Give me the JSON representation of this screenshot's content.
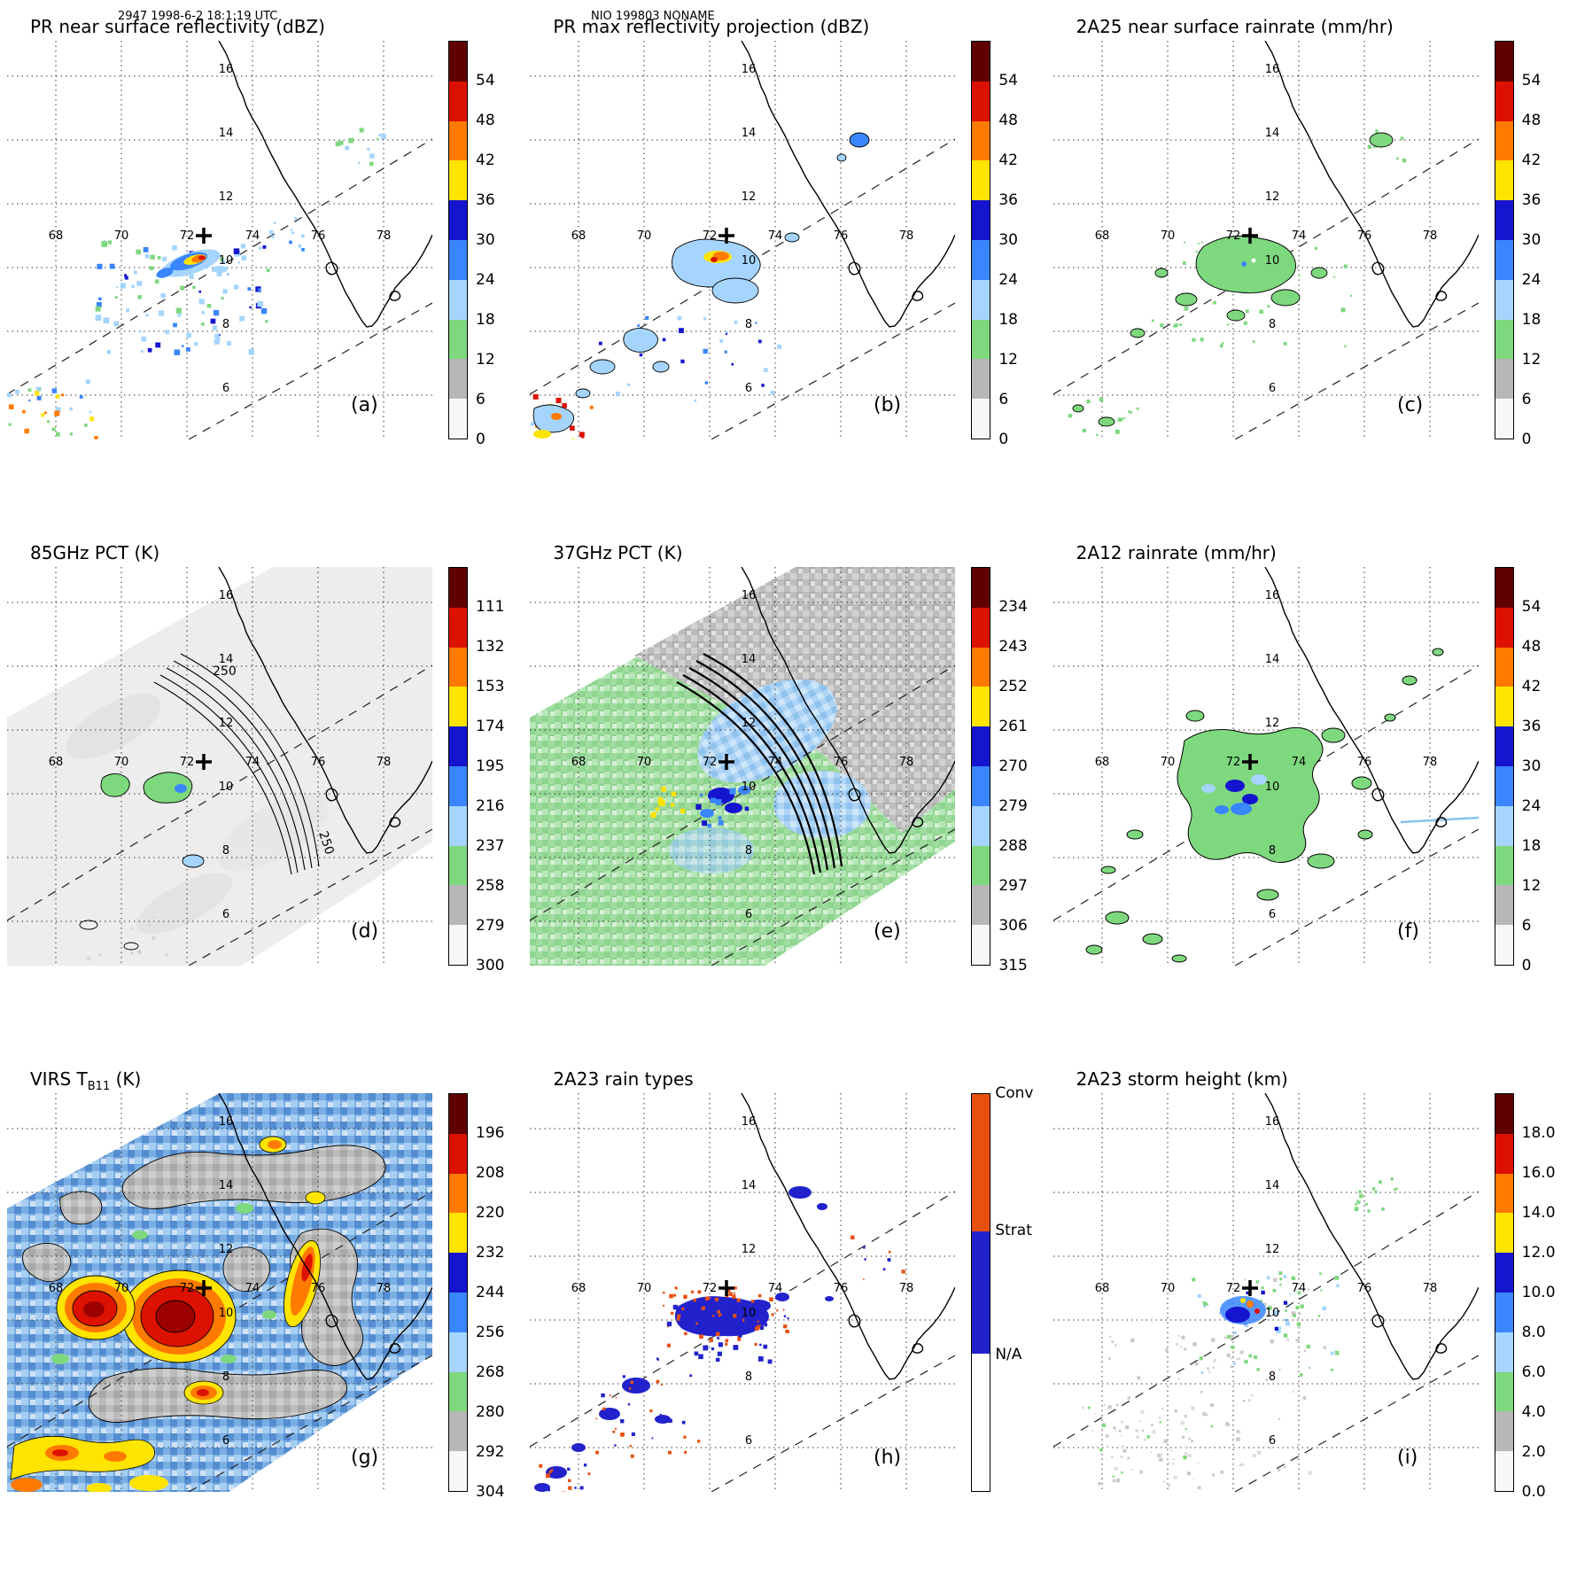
{
  "header": {
    "left": "2947 1998-6-2 18:1:19 UTC",
    "center": "NIO 199803 NONAME"
  },
  "map_labels": {
    "lon": [
      "68",
      "70",
      "72",
      "74",
      "76",
      "78"
    ],
    "lat": [
      "16",
      "14",
      "12",
      "10",
      "8",
      "6"
    ]
  },
  "palette": {
    "scale": [
      "#600000",
      "#dd1100",
      "#ff7a00",
      "#ffe400",
      "#1515cf",
      "#3a86ff",
      "#a5d5ff",
      "#7ed87e",
      "#b7b7b7",
      "#f7f7f7"
    ],
    "conv": "#e8500f",
    "strat": "#2222cc",
    "na": "#ffffff"
  },
  "panels": [
    {
      "letter": "(a)",
      "title_prefix": "PR near surface reflectivity (dBZ)",
      "title_sub": "",
      "title_suffix": "",
      "colorbar": {
        "ticks": [
          "54",
          "48",
          "42",
          "36",
          "30",
          "24",
          "18",
          "12",
          "6",
          "0"
        ]
      }
    },
    {
      "letter": "(b)",
      "title_prefix": "PR max reflectivity projection (dBZ)",
      "title_sub": "",
      "title_suffix": "",
      "colorbar": {
        "ticks": [
          "54",
          "48",
          "42",
          "36",
          "30",
          "24",
          "18",
          "12",
          "6",
          "0"
        ]
      }
    },
    {
      "letter": "(c)",
      "title_prefix": "2A25 near surface rainrate (mm/hr)",
      "title_sub": "",
      "title_suffix": "",
      "colorbar": {
        "ticks": [
          "54",
          "48",
          "42",
          "36",
          "30",
          "24",
          "18",
          "12",
          "6",
          "0"
        ]
      }
    },
    {
      "letter": "(d)",
      "title_prefix": "85GHz PCT (K)",
      "title_sub": "",
      "title_suffix": "",
      "colorbar": {
        "ticks": [
          "111",
          "132",
          "153",
          "174",
          "195",
          "216",
          "237",
          "258",
          "279",
          "300"
        ]
      },
      "annotations": [
        "250",
        "250"
      ]
    },
    {
      "letter": "(e)",
      "title_prefix": "37GHz PCT (K)",
      "title_sub": "",
      "title_suffix": "",
      "colorbar": {
        "ticks": [
          "234",
          "243",
          "252",
          "261",
          "270",
          "279",
          "288",
          "297",
          "306",
          "315"
        ]
      }
    },
    {
      "letter": "(f)",
      "title_prefix": "2A12 rainrate (mm/hr)",
      "title_sub": "",
      "title_suffix": "",
      "colorbar": {
        "ticks": [
          "54",
          "48",
          "42",
          "36",
          "30",
          "24",
          "18",
          "12",
          "6",
          "0"
        ]
      }
    },
    {
      "letter": "(g)",
      "title_prefix": "VIRS T",
      "title_sub": "B11",
      "title_suffix": " (K)",
      "colorbar": {
        "ticks": [
          "196",
          "208",
          "220",
          "232",
          "244",
          "256",
          "268",
          "280",
          "292",
          "304"
        ]
      }
    },
    {
      "letter": "(h)",
      "title_prefix": "2A23 rain types",
      "title_sub": "",
      "title_suffix": "",
      "colorbar": {
        "segments": [
          {
            "label": "Conv",
            "color": "#e8500f",
            "frac": 0.345
          },
          {
            "label": "Strat",
            "color": "#2222cc",
            "frac": 0.31
          },
          {
            "label": "N/A",
            "color": "#ffffff",
            "frac": 0.345
          }
        ]
      }
    },
    {
      "letter": "(i)",
      "title_prefix": "2A23 storm height (km)",
      "title_sub": "",
      "title_suffix": "",
      "colorbar": {
        "ticks": [
          "18.0",
          "16.0",
          "14.0",
          "12.0",
          "10.0",
          "8.0",
          "6.0",
          "4.0",
          "2.0",
          "0.0"
        ]
      }
    }
  ],
  "chart_data": [
    {
      "type": "heatmap",
      "panel": "a",
      "title": "PR near surface reflectivity (dBZ)",
      "units": "dBZ",
      "colorbar_ticks": [
        54,
        48,
        42,
        36,
        30,
        24,
        18,
        12,
        6,
        0
      ],
      "lon_ticks": [
        68,
        70,
        72,
        74,
        76,
        78
      ],
      "lat_ticks": [
        16,
        14,
        12,
        10,
        8,
        6
      ],
      "storm_center_marker": {
        "lon_deg_e": 72.5,
        "lat_deg_n": 11.0
      }
    },
    {
      "type": "heatmap",
      "panel": "b",
      "title": "PR max reflectivity projection (dBZ)",
      "units": "dBZ",
      "colorbar_ticks": [
        54,
        48,
        42,
        36,
        30,
        24,
        18,
        12,
        6,
        0
      ],
      "lon_ticks": [
        68,
        70,
        72,
        74,
        76,
        78
      ],
      "lat_ticks": [
        16,
        14,
        12,
        10,
        8,
        6
      ]
    },
    {
      "type": "heatmap",
      "panel": "c",
      "title": "2A25 near surface rainrate (mm/hr)",
      "units": "mm/hr",
      "colorbar_ticks": [
        54,
        48,
        42,
        36,
        30,
        24,
        18,
        12,
        6,
        0
      ],
      "lon_ticks": [
        68,
        70,
        72,
        74,
        76,
        78
      ],
      "lat_ticks": [
        16,
        14,
        12,
        10,
        8,
        6
      ]
    },
    {
      "type": "heatmap",
      "panel": "d",
      "title": "85GHz PCT (K)",
      "units": "K",
      "colorbar_ticks": [
        111,
        132,
        153,
        174,
        195,
        216,
        237,
        258,
        279,
        300
      ],
      "contour_labels": [
        250,
        250
      ],
      "lon_ticks": [
        68,
        70,
        72,
        74,
        76,
        78
      ],
      "lat_ticks": [
        16,
        14,
        12,
        10,
        8,
        6
      ]
    },
    {
      "type": "heatmap",
      "panel": "e",
      "title": "37GHz PCT (K)",
      "units": "K",
      "colorbar_ticks": [
        234,
        243,
        252,
        261,
        270,
        279,
        288,
        297,
        306,
        315
      ],
      "lon_ticks": [
        68,
        70,
        72,
        74,
        76,
        78
      ],
      "lat_ticks": [
        16,
        14,
        12,
        10,
        8,
        6
      ]
    },
    {
      "type": "heatmap",
      "panel": "f",
      "title": "2A12 rainrate (mm/hr)",
      "units": "mm/hr",
      "colorbar_ticks": [
        54,
        48,
        42,
        36,
        30,
        24,
        18,
        12,
        6,
        0
      ],
      "lon_ticks": [
        68,
        70,
        72,
        74,
        76,
        78
      ],
      "lat_ticks": [
        16,
        14,
        12,
        10,
        8,
        6
      ]
    },
    {
      "type": "heatmap",
      "panel": "g",
      "title": "VIRS TB11 (K)",
      "units": "K",
      "colorbar_ticks": [
        196,
        208,
        220,
        232,
        244,
        256,
        268,
        280,
        292,
        304
      ],
      "lon_ticks": [
        68,
        70,
        72,
        74,
        76,
        78
      ],
      "lat_ticks": [
        16,
        14,
        12,
        10,
        8,
        6
      ]
    },
    {
      "type": "heatmap",
      "panel": "h",
      "title": "2A23 rain types",
      "categories": [
        "Conv",
        "Strat",
        "N/A"
      ],
      "lon_ticks": [
        68,
        70,
        72,
        74,
        76,
        78
      ],
      "lat_ticks": [
        16,
        14,
        12,
        10,
        8,
        6
      ]
    },
    {
      "type": "heatmap",
      "panel": "i",
      "title": "2A23 storm height (km)",
      "units": "km",
      "colorbar_ticks": [
        18.0,
        16.0,
        14.0,
        12.0,
        10.0,
        8.0,
        6.0,
        4.0,
        2.0,
        0.0
      ],
      "lon_ticks": [
        68,
        70,
        72,
        74,
        76,
        78
      ],
      "lat_ticks": [
        16,
        14,
        12,
        10,
        8,
        6
      ]
    }
  ]
}
